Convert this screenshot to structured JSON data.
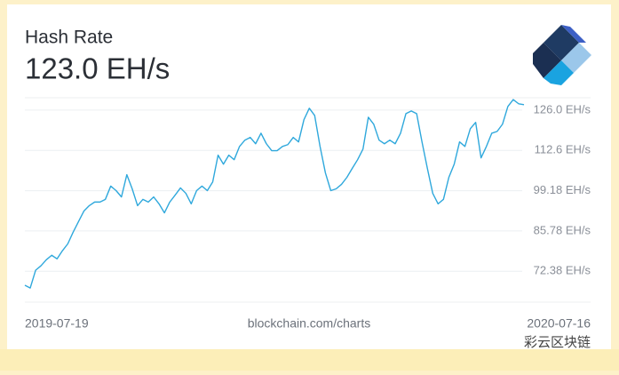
{
  "chart_data": {
    "type": "line",
    "title": "Hash Rate",
    "subtitle": "123.0 EH/s",
    "source": "blockchain.com/charts",
    "watermark": "彩云区块链",
    "categories": [
      "2019-07-19",
      null,
      null,
      null,
      null,
      null,
      null,
      null,
      null,
      null,
      null,
      null,
      null,
      null,
      null,
      null,
      null,
      null,
      null,
      null,
      null,
      null,
      null,
      null,
      null,
      null,
      null,
      null,
      null,
      null,
      null,
      null,
      null,
      null,
      null,
      null,
      null,
      null,
      null,
      null,
      null,
      null,
      null,
      null,
      null,
      null,
      null,
      null,
      null,
      null,
      null,
      null,
      null,
      null,
      null,
      null,
      null,
      null,
      null,
      null,
      null,
      null,
      null,
      null,
      null,
      null,
      null,
      null,
      null,
      null,
      null,
      null,
      null,
      null,
      null,
      null,
      null,
      null,
      null,
      null,
      null,
      null,
      null,
      null,
      null,
      null,
      null,
      null,
      null,
      null,
      null,
      null,
      null,
      "2020-07-16"
    ],
    "series": [
      {
        "color": "#2fa8dc",
        "values": [
          67.7,
          66.8,
          72.7,
          74.2,
          76.2,
          77.7,
          76.5,
          79.2,
          81.5,
          85.4,
          88.9,
          92.4,
          94.2,
          95.4,
          95.4,
          96.3,
          100.7,
          99.2,
          97.1,
          104.5,
          99.8,
          94.2,
          96.3,
          95.4,
          97.1,
          94.8,
          91.8,
          95.4,
          97.7,
          100.1,
          98.3,
          94.8,
          99.2,
          100.7,
          99.2,
          102.1,
          111.0,
          108.0,
          111.0,
          109.5,
          113.9,
          116.0,
          116.9,
          114.8,
          118.3,
          114.8,
          112.5,
          112.5,
          113.9,
          114.5,
          116.9,
          115.4,
          122.8,
          126.6,
          124.2,
          113.9,
          105.1,
          99.2,
          99.8,
          101.3,
          103.6,
          106.6,
          109.5,
          113.0,
          123.6,
          121.3,
          116.0,
          114.8,
          116.0,
          114.8,
          118.3,
          124.8,
          125.7,
          124.8,
          115.4,
          106.6,
          98.3,
          94.8,
          96.3,
          103.6,
          108.0,
          115.4,
          113.9,
          119.8,
          121.9,
          110.1,
          113.9,
          118.3,
          118.9,
          121.3,
          127.2,
          129.5,
          128.1,
          127.8
        ]
      }
    ],
    "ylim": [
      62.1,
      130.1
    ],
    "yticks": [
      {
        "value": 72.38,
        "label": "72.38 EH/s"
      },
      {
        "value": 85.78,
        "label": "85.78 EH/s"
      },
      {
        "value": 99.18,
        "label": "99.18 EH/s"
      },
      {
        "value": 112.6,
        "label": "112.6 EH/s"
      },
      {
        "value": 126.0,
        "label": "126.0 EH/s"
      }
    ],
    "grid": true
  }
}
